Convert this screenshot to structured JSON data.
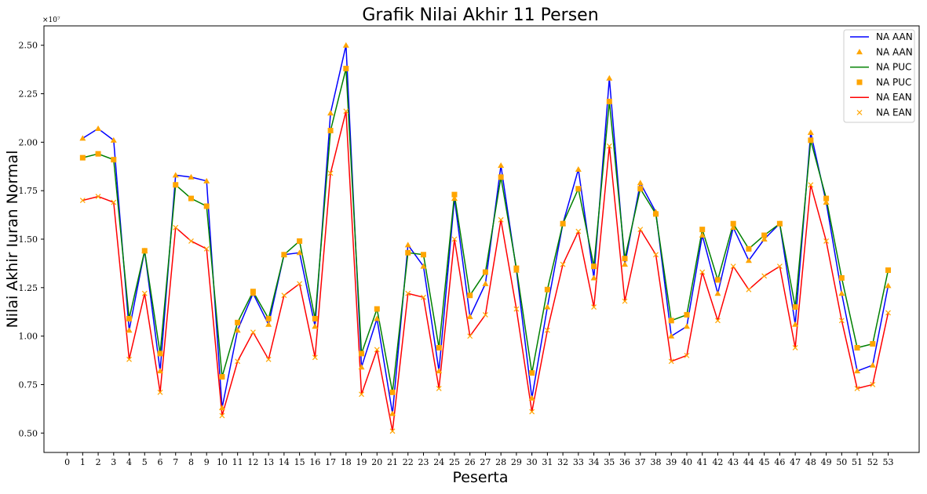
{
  "chart_data": {
    "type": "line",
    "title": "Grafik Nilai Akhir 11 Persen",
    "xlabel": "Peserta",
    "ylabel": "Nilai Akhir Iuran Normal",
    "y_multiplier": "×10⁷",
    "y_scale": 10000000,
    "xlim": [
      -1.5,
      55
    ],
    "ylim": [
      0.4,
      2.6
    ],
    "x_ticks": [
      0,
      1,
      2,
      3,
      4,
      5,
      6,
      7,
      8,
      9,
      10,
      11,
      12,
      13,
      14,
      15,
      16,
      17,
      18,
      19,
      20,
      21,
      22,
      23,
      24,
      25,
      26,
      27,
      28,
      29,
      30,
      31,
      32,
      33,
      34,
      35,
      36,
      37,
      38,
      39,
      40,
      41,
      42,
      43,
      44,
      45,
      46,
      47,
      48,
      49,
      50,
      51,
      52,
      53
    ],
    "y_ticks": [
      {
        "value": 0.5,
        "label": "0.50"
      },
      {
        "value": 0.75,
        "label": "0.75"
      },
      {
        "value": 1.0,
        "label": "1.00"
      },
      {
        "value": 1.25,
        "label": "1.25"
      },
      {
        "value": 1.5,
        "label": "1.50"
      },
      {
        "value": 1.75,
        "label": "1.75"
      },
      {
        "value": 2.0,
        "label": "2.00"
      },
      {
        "value": 2.25,
        "label": "2.25"
      },
      {
        "value": 2.5,
        "label": "2.50"
      }
    ],
    "grid": false,
    "legend_position": "top-right",
    "x": [
      1,
      2,
      3,
      4,
      5,
      6,
      7,
      8,
      9,
      10,
      11,
      12,
      13,
      14,
      15,
      16,
      17,
      18,
      19,
      20,
      21,
      22,
      23,
      24,
      25,
      26,
      27,
      28,
      29,
      30,
      31,
      32,
      33,
      34,
      35,
      36,
      37,
      38,
      39,
      40,
      41,
      42,
      43,
      44,
      45,
      46,
      47,
      48,
      49,
      50,
      51,
      52,
      53
    ],
    "series": [
      {
        "name": "NA AAN",
        "line_color": "#0000ff",
        "marker": "triangle",
        "marker_color": "#ffa500",
        "values": [
          2.02,
          2.07,
          2.01,
          1.03,
          1.44,
          0.82,
          1.83,
          1.82,
          1.8,
          0.63,
          1.03,
          1.22,
          1.06,
          1.42,
          1.43,
          1.05,
          2.15,
          2.5,
          0.84,
          1.09,
          0.6,
          1.47,
          1.36,
          0.82,
          1.71,
          1.1,
          1.27,
          1.88,
          1.34,
          0.68,
          1.15,
          1.58,
          1.86,
          1.3,
          2.33,
          1.37,
          1.79,
          1.64,
          1.0,
          1.05,
          1.52,
          1.22,
          1.56,
          1.39,
          1.5,
          1.58,
          1.06,
          2.05,
          1.69,
          1.22,
          0.82,
          0.85,
          1.26
        ]
      },
      {
        "name": "NA PUC",
        "line_color": "#008000",
        "marker": "square",
        "marker_color": "#ffa500",
        "values": [
          1.92,
          1.94,
          1.91,
          1.09,
          1.44,
          0.91,
          1.78,
          1.71,
          1.67,
          0.79,
          1.07,
          1.23,
          1.09,
          1.42,
          1.49,
          1.09,
          2.06,
          2.38,
          0.91,
          1.14,
          0.71,
          1.43,
          1.42,
          0.94,
          1.73,
          1.21,
          1.33,
          1.82,
          1.35,
          0.81,
          1.24,
          1.58,
          1.76,
          1.36,
          2.21,
          1.4,
          1.76,
          1.63,
          1.08,
          1.11,
          1.55,
          1.29,
          1.58,
          1.45,
          1.52,
          1.58,
          1.15,
          2.01,
          1.71,
          1.3,
          0.94,
          0.96,
          1.34
        ]
      },
      {
        "name": "NA EAN",
        "line_color": "#ff0000",
        "marker": "x",
        "marker_color": "#ffa500",
        "values": [
          1.7,
          1.72,
          1.69,
          0.88,
          1.22,
          0.71,
          1.56,
          1.49,
          1.45,
          0.59,
          0.87,
          1.02,
          0.88,
          1.21,
          1.27,
          0.89,
          1.84,
          2.16,
          0.7,
          0.93,
          0.51,
          1.22,
          1.2,
          0.73,
          1.5,
          1.0,
          1.11,
          1.6,
          1.14,
          0.61,
          1.03,
          1.37,
          1.54,
          1.15,
          1.98,
          1.18,
          1.55,
          1.42,
          0.87,
          0.9,
          1.33,
          1.08,
          1.36,
          1.24,
          1.31,
          1.36,
          0.94,
          1.78,
          1.49,
          1.08,
          0.73,
          0.75,
          1.12
        ]
      }
    ],
    "legend": [
      {
        "label": "NA AAN",
        "kind": "line",
        "color": "#0000ff"
      },
      {
        "label": "NA AAN",
        "kind": "triangle",
        "color": "#ffa500"
      },
      {
        "label": "NA PUC",
        "kind": "line",
        "color": "#008000"
      },
      {
        "label": "NA PUC",
        "kind": "square",
        "color": "#ffa500"
      },
      {
        "label": "NA EAN",
        "kind": "line",
        "color": "#ff0000"
      },
      {
        "label": "NA EAN",
        "kind": "x",
        "color": "#ffa500"
      }
    ]
  }
}
